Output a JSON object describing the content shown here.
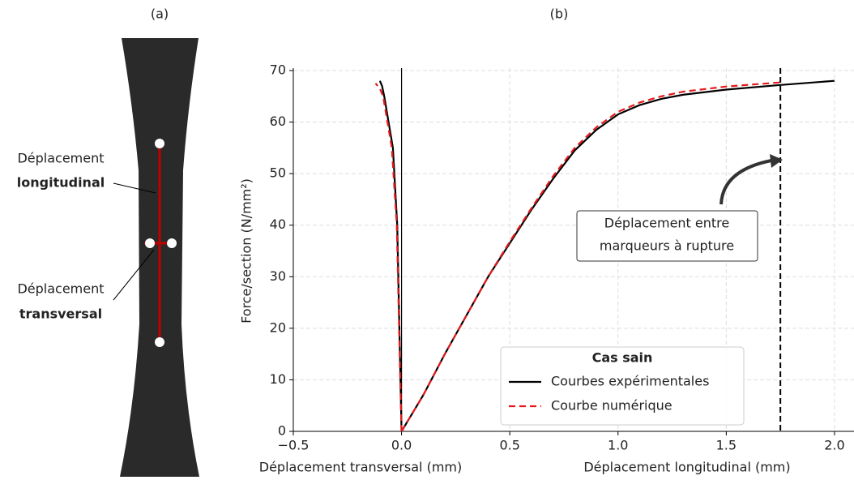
{
  "panels": {
    "a": "(a)",
    "b": "(b)"
  },
  "specimen": {
    "labels": [
      {
        "line1": "Déplacement",
        "line2": "longitudinal"
      },
      {
        "line1": "Déplacement",
        "line2": "transversal"
      }
    ]
  },
  "chart_data": {
    "type": "line",
    "x_labels": [
      "Déplacement transversal (mm)",
      "Déplacement longitudinal (mm)"
    ],
    "y_label": "Force/section (N/mm²)",
    "xlim": [
      -0.5,
      2.09
    ],
    "ylim": [
      0,
      70
    ],
    "xticks": [
      {
        "value": -0.5,
        "label": "−0.5"
      },
      {
        "value": 0,
        "label": "0.0"
      },
      0.5,
      {
        "value": 1,
        "label": "1.0"
      },
      1.5,
      {
        "value": 2,
        "label": "2.0"
      }
    ],
    "yticks": [
      0,
      10,
      20,
      30,
      40,
      50,
      60,
      70
    ],
    "grid": true,
    "legend": {
      "title": "Cas sain",
      "location": "lower right"
    },
    "rupture_x": 1.75,
    "annotation": [
      "Déplacement entre",
      "marqueurs à rupture"
    ],
    "series": [
      {
        "name": "Courbes expérimentales",
        "color": "#000000",
        "dash": false,
        "x": [
          0,
          -0.005,
          -0.02,
          -0.04,
          -0.06,
          -0.08,
          -0.09,
          -0.1,
          -0.095,
          null,
          0,
          0.1,
          0.2,
          0.3,
          0.4,
          0.5,
          0.6,
          0.7,
          0.8,
          0.9,
          1.0,
          1.1,
          1.2,
          1.3,
          1.5,
          1.75,
          2.0
        ],
        "values": [
          0,
          10,
          40,
          55,
          60,
          65,
          67,
          68,
          67.5,
          null,
          0,
          7,
          15,
          22.5,
          30,
          36.5,
          43,
          49,
          54.5,
          58.5,
          61.5,
          63.3,
          64.5,
          65.3,
          66.3,
          67.2,
          68
        ]
      },
      {
        "name": "Courbe numérique",
        "color": "#e31a1c",
        "dash": true,
        "x": [
          0,
          -0.006,
          -0.022,
          -0.045,
          -0.065,
          -0.085,
          -0.1,
          -0.12,
          null,
          0,
          0.1,
          0.2,
          0.3,
          0.4,
          0.5,
          0.6,
          0.7,
          0.8,
          0.9,
          1.0,
          1.1,
          1.2,
          1.3,
          1.5,
          1.75
        ],
        "values": [
          0,
          10,
          40,
          55,
          60,
          65,
          66.5,
          67.5,
          null,
          0,
          7,
          15,
          22.5,
          30,
          36.8,
          43.3,
          49.5,
          55,
          59,
          62,
          63.8,
          65,
          65.9,
          66.9,
          67.7
        ]
      }
    ]
  }
}
